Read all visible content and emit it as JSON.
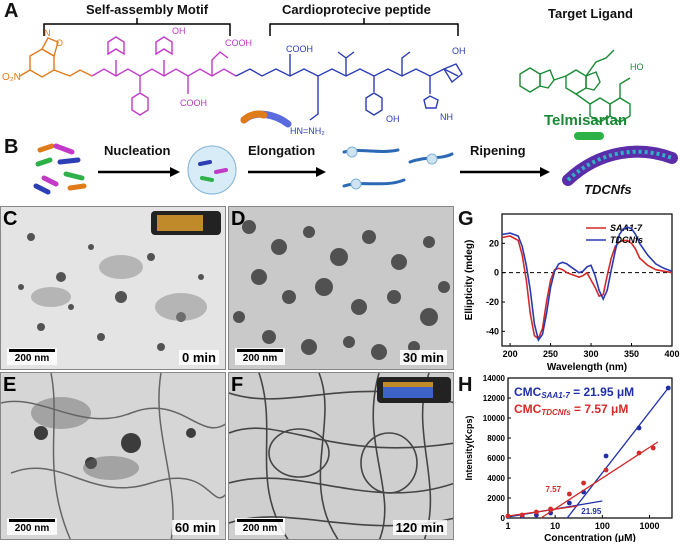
{
  "panels": {
    "A": {
      "letter": "A",
      "motif_label": "Self-assembly Motif",
      "peptide_label": "Cardioprotecive peptide",
      "ligand_label": "Target Ligand",
      "ligand_name": "Telmisartan",
      "colors": {
        "orange": "#e07b1a",
        "magenta": "#c238c7",
        "blue": "#2d3db5",
        "green": "#1aa63c"
      }
    },
    "B": {
      "letter": "B",
      "steps": [
        "Nucleation",
        "Elongation",
        "Ripening"
      ],
      "product": "TDCNfs"
    },
    "tem": [
      {
        "letter": "C",
        "time": "0 min",
        "scale": "200 nm"
      },
      {
        "letter": "D",
        "time": "30 min",
        "scale": "200 nm"
      },
      {
        "letter": "E",
        "time": "60 min",
        "scale": "200 nm"
      },
      {
        "letter": "F",
        "time": "120 min",
        "scale": "200 nm"
      }
    ],
    "G": {
      "letter": "G"
    },
    "H": {
      "letter": "H"
    }
  },
  "chart_data": [
    {
      "type": "line",
      "xlabel": "Wavelength (nm)",
      "ylabel": "Ellipticity (mdeg)",
      "xlim": [
        190,
        400
      ],
      "ylim": [
        -50,
        40
      ],
      "xticks": [
        200,
        250,
        300,
        350,
        400
      ],
      "yticks": [
        -40,
        -20,
        0,
        20
      ],
      "legend_position": "top-right",
      "series": [
        {
          "name": "SAA1-7",
          "color": "#d42a2a",
          "x": [
            190,
            200,
            210,
            215,
            220,
            225,
            230,
            235,
            240,
            245,
            250,
            255,
            260,
            265,
            270,
            275,
            280,
            285,
            290,
            295,
            300,
            305,
            310,
            315,
            320,
            325,
            330,
            335,
            340,
            345,
            350,
            355,
            360,
            370,
            380,
            390,
            400
          ],
          "y": [
            24,
            25,
            22,
            12,
            -5,
            -28,
            -43,
            -45,
            -38,
            -20,
            -5,
            2,
            3,
            2,
            0,
            -1,
            -2,
            -3,
            -2,
            0,
            -5,
            -10,
            -16,
            -15,
            -2,
            10,
            18,
            21,
            22,
            22,
            20,
            16,
            10,
            5,
            2,
            1,
            0
          ]
        },
        {
          "name": "TDCNfs",
          "color": "#2a3ab0",
          "x": [
            190,
            200,
            210,
            215,
            220,
            225,
            230,
            235,
            240,
            245,
            250,
            255,
            260,
            265,
            270,
            275,
            280,
            285,
            290,
            295,
            300,
            305,
            310,
            315,
            320,
            325,
            330,
            335,
            340,
            345,
            350,
            355,
            360,
            370,
            380,
            390,
            400
          ],
          "y": [
            26,
            27,
            25,
            18,
            5,
            -12,
            -35,
            -46,
            -42,
            -28,
            -10,
            1,
            6,
            7,
            6,
            4,
            2,
            0,
            1,
            4,
            5,
            -2,
            -12,
            -18,
            -12,
            2,
            15,
            26,
            30,
            31,
            30,
            26,
            20,
            12,
            6,
            3,
            1
          ]
        }
      ]
    },
    {
      "type": "scatter",
      "xscale": "log",
      "xlabel": "Concentration (μM)",
      "ylabel": "Intensity(Kcps)",
      "xlim": [
        1,
        3000
      ],
      "ylim": [
        0,
        14000
      ],
      "xticks": [
        1,
        10,
        100,
        1000
      ],
      "yticks": [
        0,
        2000,
        4000,
        6000,
        8000,
        10000,
        12000,
        14000
      ],
      "annotations": [
        {
          "text": "CMC",
          "sub": "SAA1-7",
          "value": " = 21.95 μM",
          "color": "#1f2fa8"
        },
        {
          "text": "CMC",
          "sub": "TDCNfs",
          "value": " = 7.57 μM",
          "color": "#d42a2a"
        }
      ],
      "intersection_labels": [
        {
          "text": "7.57",
          "x": 7.57,
          "color": "#d42a2a"
        },
        {
          "text": "21.95",
          "x": 21.95,
          "color": "#1f2fa8"
        }
      ],
      "series": [
        {
          "name": "SAA1-7",
          "color": "#1f2fa8",
          "points": [
            [
              1,
              150
            ],
            [
              2,
              200
            ],
            [
              4,
              300
            ],
            [
              8,
              500
            ],
            [
              20,
              1500
            ],
            [
              40,
              2600
            ],
            [
              120,
              6200
            ],
            [
              600,
              9000
            ],
            [
              2500,
              13000
            ]
          ],
          "fit_low": [
            [
              1,
              100
            ],
            [
              100,
              1700
            ]
          ],
          "fit_high": [
            [
              18,
              0
            ],
            [
              2500,
              13000
            ]
          ]
        },
        {
          "name": "TDCNfs",
          "color": "#d42a2a",
          "points": [
            [
              1,
              200
            ],
            [
              2,
              300
            ],
            [
              4,
              600
            ],
            [
              8,
              900
            ],
            [
              20,
              2400
            ],
            [
              40,
              3500
            ],
            [
              120,
              4800
            ],
            [
              600,
              6500
            ],
            [
              1200,
              7000
            ]
          ],
          "fit_low": [
            [
              1,
              200
            ],
            [
              30,
              1200
            ]
          ],
          "fit_high": [
            [
              5,
              0
            ],
            [
              1500,
              7600
            ]
          ]
        }
      ]
    }
  ]
}
